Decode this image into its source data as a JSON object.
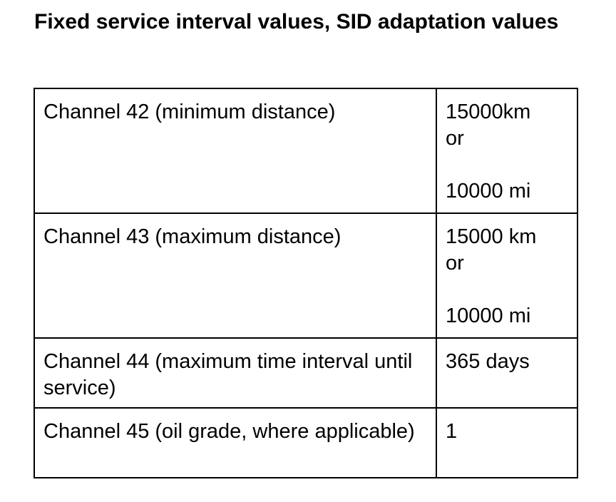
{
  "heading": "Fixed service interval values, SID adaptation values",
  "rows": [
    {
      "label": "Channel 42 (minimum distance)",
      "value_line1": "15000km",
      "value_line2": "or",
      "value_line3": "10000 mi"
    },
    {
      "label": "Channel 43 (maximum distance)",
      "value_line1": "15000 km",
      "value_line2": "or",
      "value_line3": "10000 mi"
    },
    {
      "label": "Channel 44 (maximum time interval until service)",
      "value": "365 days"
    },
    {
      "label": "Channel 45 (oil grade, where applicable)",
      "value": "1"
    }
  ]
}
